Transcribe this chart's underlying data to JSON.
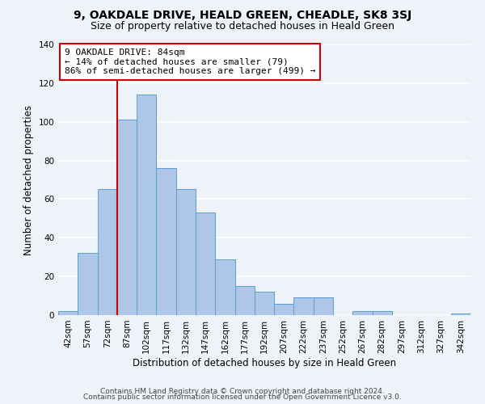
{
  "title": "9, OAKDALE DRIVE, HEALD GREEN, CHEADLE, SK8 3SJ",
  "subtitle": "Size of property relative to detached houses in Heald Green",
  "xlabel": "Distribution of detached houses by size in Heald Green",
  "ylabel": "Number of detached properties",
  "bar_labels": [
    "42sqm",
    "57sqm",
    "72sqm",
    "87sqm",
    "102sqm",
    "117sqm",
    "132sqm",
    "147sqm",
    "162sqm",
    "177sqm",
    "192sqm",
    "207sqm",
    "222sqm",
    "237sqm",
    "252sqm",
    "267sqm",
    "282sqm",
    "297sqm",
    "312sqm",
    "327sqm",
    "342sqm"
  ],
  "bar_values": [
    2,
    32,
    65,
    101,
    114,
    76,
    65,
    53,
    29,
    15,
    12,
    6,
    9,
    9,
    0,
    2,
    2,
    0,
    0,
    0,
    1
  ],
  "bar_color": "#aec6e8",
  "bar_edge_color": "#5a9fd4",
  "vline_color": "#cc0000",
  "annotation_title": "9 OAKDALE DRIVE: 84sqm",
  "annotation_line1": "← 14% of detached houses are smaller (79)",
  "annotation_line2": "86% of semi-detached houses are larger (499) →",
  "annotation_box_color": "#ffffff",
  "annotation_box_edge_color": "#cc0000",
  "ylim": [
    0,
    140
  ],
  "yticks": [
    0,
    20,
    40,
    60,
    80,
    100,
    120,
    140
  ],
  "footer1": "Contains HM Land Registry data © Crown copyright and database right 2024.",
  "footer2": "Contains public sector information licensed under the Open Government Licence v3.0.",
  "background_color": "#eef2f9",
  "grid_color": "#ffffff",
  "title_fontsize": 10,
  "subtitle_fontsize": 9,
  "axis_label_fontsize": 8.5,
  "tick_fontsize": 7.5,
  "footer_fontsize": 6.5,
  "annot_fontsize": 8,
  "vline_bar_index": 3
}
